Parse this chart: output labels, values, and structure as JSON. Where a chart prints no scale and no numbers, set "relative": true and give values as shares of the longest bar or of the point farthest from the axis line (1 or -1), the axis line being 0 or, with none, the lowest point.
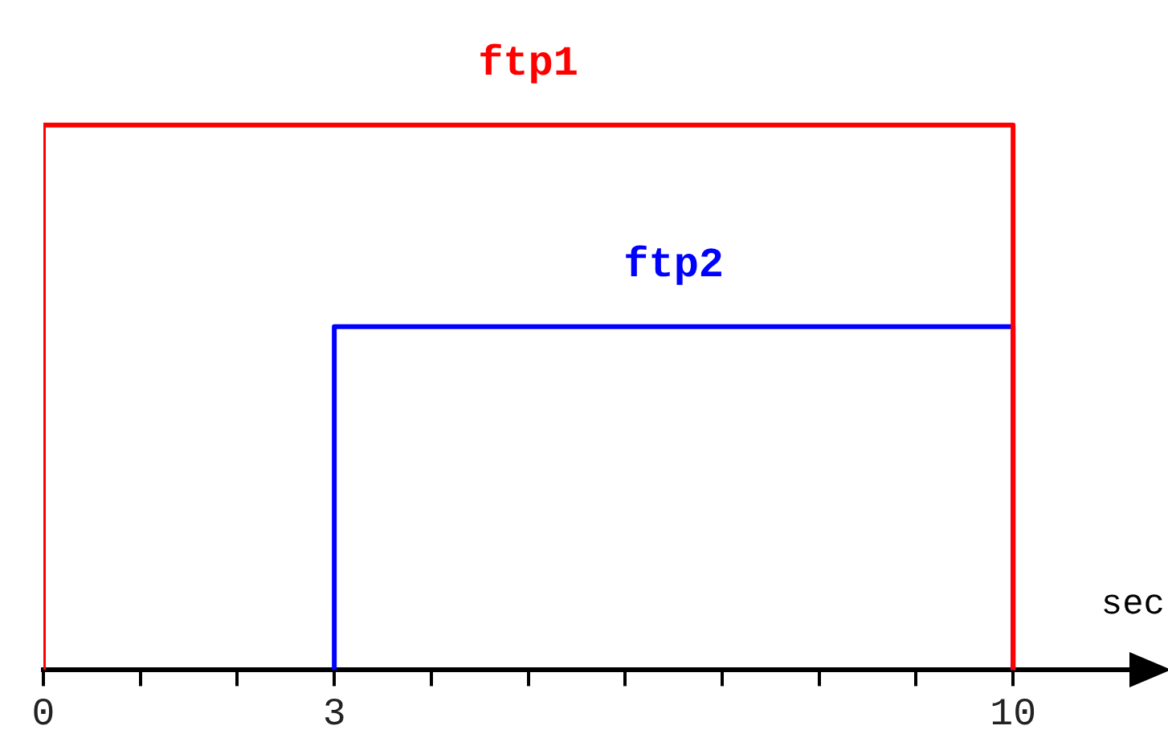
{
  "chart_data": {
    "type": "line",
    "relative": true,
    "xlabel": "sec",
    "xlim": [
      0,
      11.2
    ],
    "xticks": [
      0,
      {
        "value": 1,
        "label": null
      },
      {
        "value": 2,
        "label": null
      },
      3,
      {
        "value": 4,
        "label": null
      },
      {
        "value": 5,
        "label": null
      },
      {
        "value": 6,
        "label": null
      },
      {
        "value": 7,
        "label": null
      },
      {
        "value": 8,
        "label": null
      },
      {
        "value": 9,
        "label": null
      },
      10
    ],
    "grid": false,
    "legend": false,
    "marker": "none",
    "line_style": "solid",
    "series": [
      {
        "name": "ftp1",
        "color": "#ff0000",
        "x": [
          0,
          0,
          10,
          10
        ],
        "values": [
          0,
          1,
          1,
          0
        ]
      },
      {
        "name": "ftp2",
        "color": "#0000ff",
        "x": [
          3,
          3,
          10,
          10
        ],
        "values": [
          0,
          0.63,
          0.63,
          0
        ]
      }
    ]
  }
}
